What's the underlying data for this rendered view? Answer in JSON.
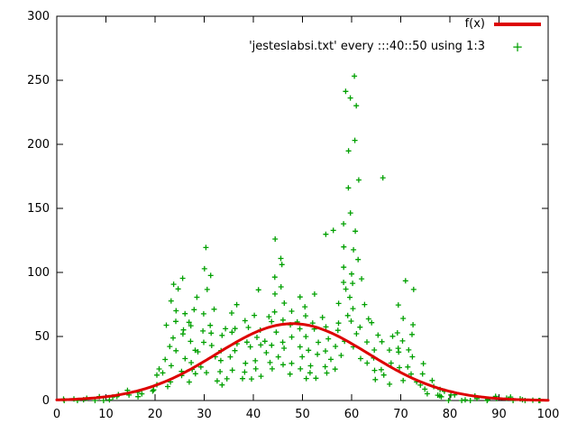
{
  "chart_data": {
    "type": "scatter",
    "title": "",
    "xlabel": "",
    "ylabel": "",
    "xlim": [
      0,
      100
    ],
    "ylim": [
      0,
      300
    ],
    "xticks": [
      0,
      10,
      20,
      30,
      40,
      50,
      60,
      70,
      80,
      90,
      100
    ],
    "yticks": [
      0,
      50,
      100,
      150,
      200,
      250,
      300
    ],
    "grid": false,
    "legend_position": "top-right",
    "legend": [
      {
        "label": "f(x)",
        "color": "#dd0000",
        "sample": "line"
      },
      {
        "label": "'jesteslabsi.txt' every :::40::50 using 1:3",
        "color": "#00a000",
        "sample": "points",
        "marker": "+"
      }
    ],
    "series": [
      {
        "name": "f(x)",
        "type": "line",
        "color": "#dd0000",
        "curve": {
          "kind": "gaussian",
          "amplitude": 60,
          "mean": 48,
          "sigma": 15.5
        }
      },
      {
        "name": "'jesteslabsi.txt' every :::40::50 using 1:3",
        "type": "scatter",
        "color": "#00a000",
        "marker": "+",
        "points": [
          [
            1,
            1
          ],
          [
            2,
            0
          ],
          [
            3,
            2
          ],
          [
            4,
            1
          ],
          [
            5,
            0
          ],
          [
            6,
            2
          ],
          [
            7,
            1
          ],
          [
            8,
            3
          ],
          [
            9,
            1
          ],
          [
            10,
            2
          ],
          [
            11,
            4
          ],
          [
            12,
            2
          ],
          [
            13,
            5
          ],
          [
            14,
            3
          ],
          [
            15,
            6
          ],
          [
            16,
            4
          ],
          [
            17,
            8
          ],
          [
            18,
            5
          ],
          [
            19,
            9
          ],
          [
            20,
            7
          ],
          [
            20,
            18
          ],
          [
            21,
            12
          ],
          [
            21,
            26
          ],
          [
            22,
            9
          ],
          [
            22,
            21
          ],
          [
            22,
            34
          ],
          [
            23,
            15
          ],
          [
            23,
            42
          ],
          [
            23,
            58
          ],
          [
            24,
            28
          ],
          [
            24,
            47
          ],
          [
            24,
            63
          ],
          [
            24,
            78
          ],
          [
            24,
            90
          ],
          [
            25,
            22
          ],
          [
            25,
            39
          ],
          [
            25,
            55
          ],
          [
            25,
            70
          ],
          [
            25,
            86
          ],
          [
            25,
            97
          ],
          [
            26,
            18
          ],
          [
            26,
            33
          ],
          [
            26,
            52
          ],
          [
            26,
            68
          ],
          [
            27,
            14
          ],
          [
            27,
            29
          ],
          [
            27,
            46
          ],
          [
            27,
            61
          ],
          [
            28,
            24
          ],
          [
            28,
            40
          ],
          [
            28,
            57
          ],
          [
            28,
            72
          ],
          [
            29,
            19
          ],
          [
            29,
            37
          ],
          [
            29,
            56
          ],
          [
            29,
            79
          ],
          [
            30,
            27
          ],
          [
            30,
            44
          ],
          [
            30,
            66
          ],
          [
            30,
            88
          ],
          [
            30,
            104
          ],
          [
            30,
            118
          ],
          [
            31,
            23
          ],
          [
            31,
            41
          ],
          [
            31,
            60
          ],
          [
            31,
            97
          ],
          [
            32,
            17
          ],
          [
            32,
            36
          ],
          [
            32,
            54
          ],
          [
            32,
            71
          ],
          [
            33,
            13
          ],
          [
            33,
            31
          ],
          [
            33,
            49
          ],
          [
            34,
            21
          ],
          [
            34,
            39
          ],
          [
            34,
            58
          ],
          [
            35,
            16
          ],
          [
            35,
            34
          ],
          [
            35,
            52
          ],
          [
            35,
            69
          ],
          [
            36,
            25
          ],
          [
            36,
            43
          ],
          [
            36,
            75
          ],
          [
            37,
            19
          ],
          [
            37,
            37
          ],
          [
            37,
            56
          ],
          [
            38,
            28
          ],
          [
            38,
            46
          ],
          [
            38,
            64
          ],
          [
            39,
            22
          ],
          [
            39,
            41
          ],
          [
            39,
            59
          ],
          [
            40,
            15
          ],
          [
            40,
            33
          ],
          [
            40,
            51
          ],
          [
            40,
            68
          ],
          [
            41,
            26
          ],
          [
            41,
            44
          ],
          [
            41,
            87
          ],
          [
            42,
            20
          ],
          [
            42,
            38
          ],
          [
            42,
            57
          ],
          [
            43,
            29
          ],
          [
            43,
            47
          ],
          [
            43,
            66
          ],
          [
            44,
            24
          ],
          [
            44,
            42
          ],
          [
            44,
            61
          ],
          [
            44,
            83
          ],
          [
            45,
            33
          ],
          [
            45,
            52
          ],
          [
            45,
            71
          ],
          [
            45,
            96
          ],
          [
            45,
            112
          ],
          [
            45,
            127
          ],
          [
            46,
            27
          ],
          [
            46,
            45
          ],
          [
            46,
            64
          ],
          [
            46,
            90
          ],
          [
            46,
            108
          ],
          [
            47,
            21
          ],
          [
            47,
            40
          ],
          [
            47,
            58
          ],
          [
            47,
            77
          ],
          [
            48,
            31
          ],
          [
            48,
            50
          ],
          [
            48,
            69
          ],
          [
            49,
            25
          ],
          [
            49,
            43
          ],
          [
            49,
            62
          ],
          [
            49,
            80
          ],
          [
            50,
            18
          ],
          [
            50,
            36
          ],
          [
            50,
            55
          ],
          [
            50,
            73
          ],
          [
            51,
            29
          ],
          [
            51,
            48
          ],
          [
            51,
            67
          ],
          [
            52,
            23
          ],
          [
            52,
            41
          ],
          [
            52,
            60
          ],
          [
            52,
            84
          ],
          [
            53,
            17
          ],
          [
            53,
            35
          ],
          [
            53,
            54
          ],
          [
            54,
            27
          ],
          [
            54,
            46
          ],
          [
            54,
            64
          ],
          [
            55,
            21
          ],
          [
            55,
            39
          ],
          [
            55,
            58
          ],
          [
            55,
            128
          ],
          [
            56,
            31
          ],
          [
            56,
            50
          ],
          [
            56,
            133
          ],
          [
            57,
            25
          ],
          [
            57,
            44
          ],
          [
            57,
            62
          ],
          [
            58,
            36
          ],
          [
            58,
            55
          ],
          [
            58,
            74
          ],
          [
            58,
            93
          ],
          [
            59,
            47
          ],
          [
            59,
            66
          ],
          [
            59,
            85
          ],
          [
            59,
            106
          ],
          [
            59,
            121
          ],
          [
            59,
            139
          ],
          [
            59,
            196
          ],
          [
            59,
            243
          ],
          [
            60,
            41
          ],
          [
            60,
            60
          ],
          [
            60,
            79
          ],
          [
            60,
            98
          ],
          [
            60,
            117
          ],
          [
            60,
            148
          ],
          [
            60,
            168
          ],
          [
            60,
            202
          ],
          [
            60,
            236
          ],
          [
            60,
            255
          ],
          [
            61,
            52
          ],
          [
            61,
            71
          ],
          [
            61,
            90
          ],
          [
            61,
            112
          ],
          [
            61,
            131
          ],
          [
            61,
            174
          ],
          [
            61,
            229
          ],
          [
            62,
            34
          ],
          [
            62,
            57
          ],
          [
            62,
            76
          ],
          [
            62,
            95
          ],
          [
            63,
            28
          ],
          [
            63,
            46
          ],
          [
            63,
            65
          ],
          [
            64,
            22
          ],
          [
            64,
            40
          ],
          [
            64,
            59
          ],
          [
            65,
            16
          ],
          [
            65,
            35
          ],
          [
            65,
            53
          ],
          [
            66,
            26
          ],
          [
            66,
            44
          ],
          [
            66,
            172
          ],
          [
            67,
            19
          ],
          [
            67,
            38
          ],
          [
            68,
            13
          ],
          [
            68,
            31
          ],
          [
            68,
            50
          ],
          [
            69,
            24
          ],
          [
            69,
            42
          ],
          [
            70,
            17
          ],
          [
            70,
            36
          ],
          [
            70,
            54
          ],
          [
            70,
            73
          ],
          [
            71,
            28
          ],
          [
            71,
            47
          ],
          [
            71,
            66
          ],
          [
            71,
            95
          ],
          [
            72,
            21
          ],
          [
            72,
            40
          ],
          [
            72,
            58
          ],
          [
            72,
            88
          ],
          [
            73,
            15
          ],
          [
            73,
            33
          ],
          [
            73,
            52
          ],
          [
            74,
            11
          ],
          [
            74,
            27
          ],
          [
            75,
            8
          ],
          [
            75,
            19
          ],
          [
            76,
            6
          ],
          [
            76,
            15
          ],
          [
            77,
            4
          ],
          [
            77,
            12
          ],
          [
            78,
            3
          ],
          [
            78,
            9
          ],
          [
            79,
            2
          ],
          [
            79,
            7
          ],
          [
            80,
            1
          ],
          [
            80,
            5
          ],
          [
            81,
            3
          ],
          [
            82,
            1
          ],
          [
            83,
            2
          ],
          [
            84,
            0
          ],
          [
            85,
            2
          ],
          [
            86,
            1
          ],
          [
            87,
            0
          ],
          [
            88,
            1
          ],
          [
            89,
            0
          ],
          [
            90,
            2
          ],
          [
            91,
            0
          ],
          [
            92,
            1
          ],
          [
            93,
            0
          ],
          [
            94,
            1
          ],
          [
            95,
            0
          ],
          [
            96,
            1
          ],
          [
            97,
            0
          ],
          [
            98,
            1
          ],
          [
            99,
            0
          ]
        ]
      }
    ]
  }
}
